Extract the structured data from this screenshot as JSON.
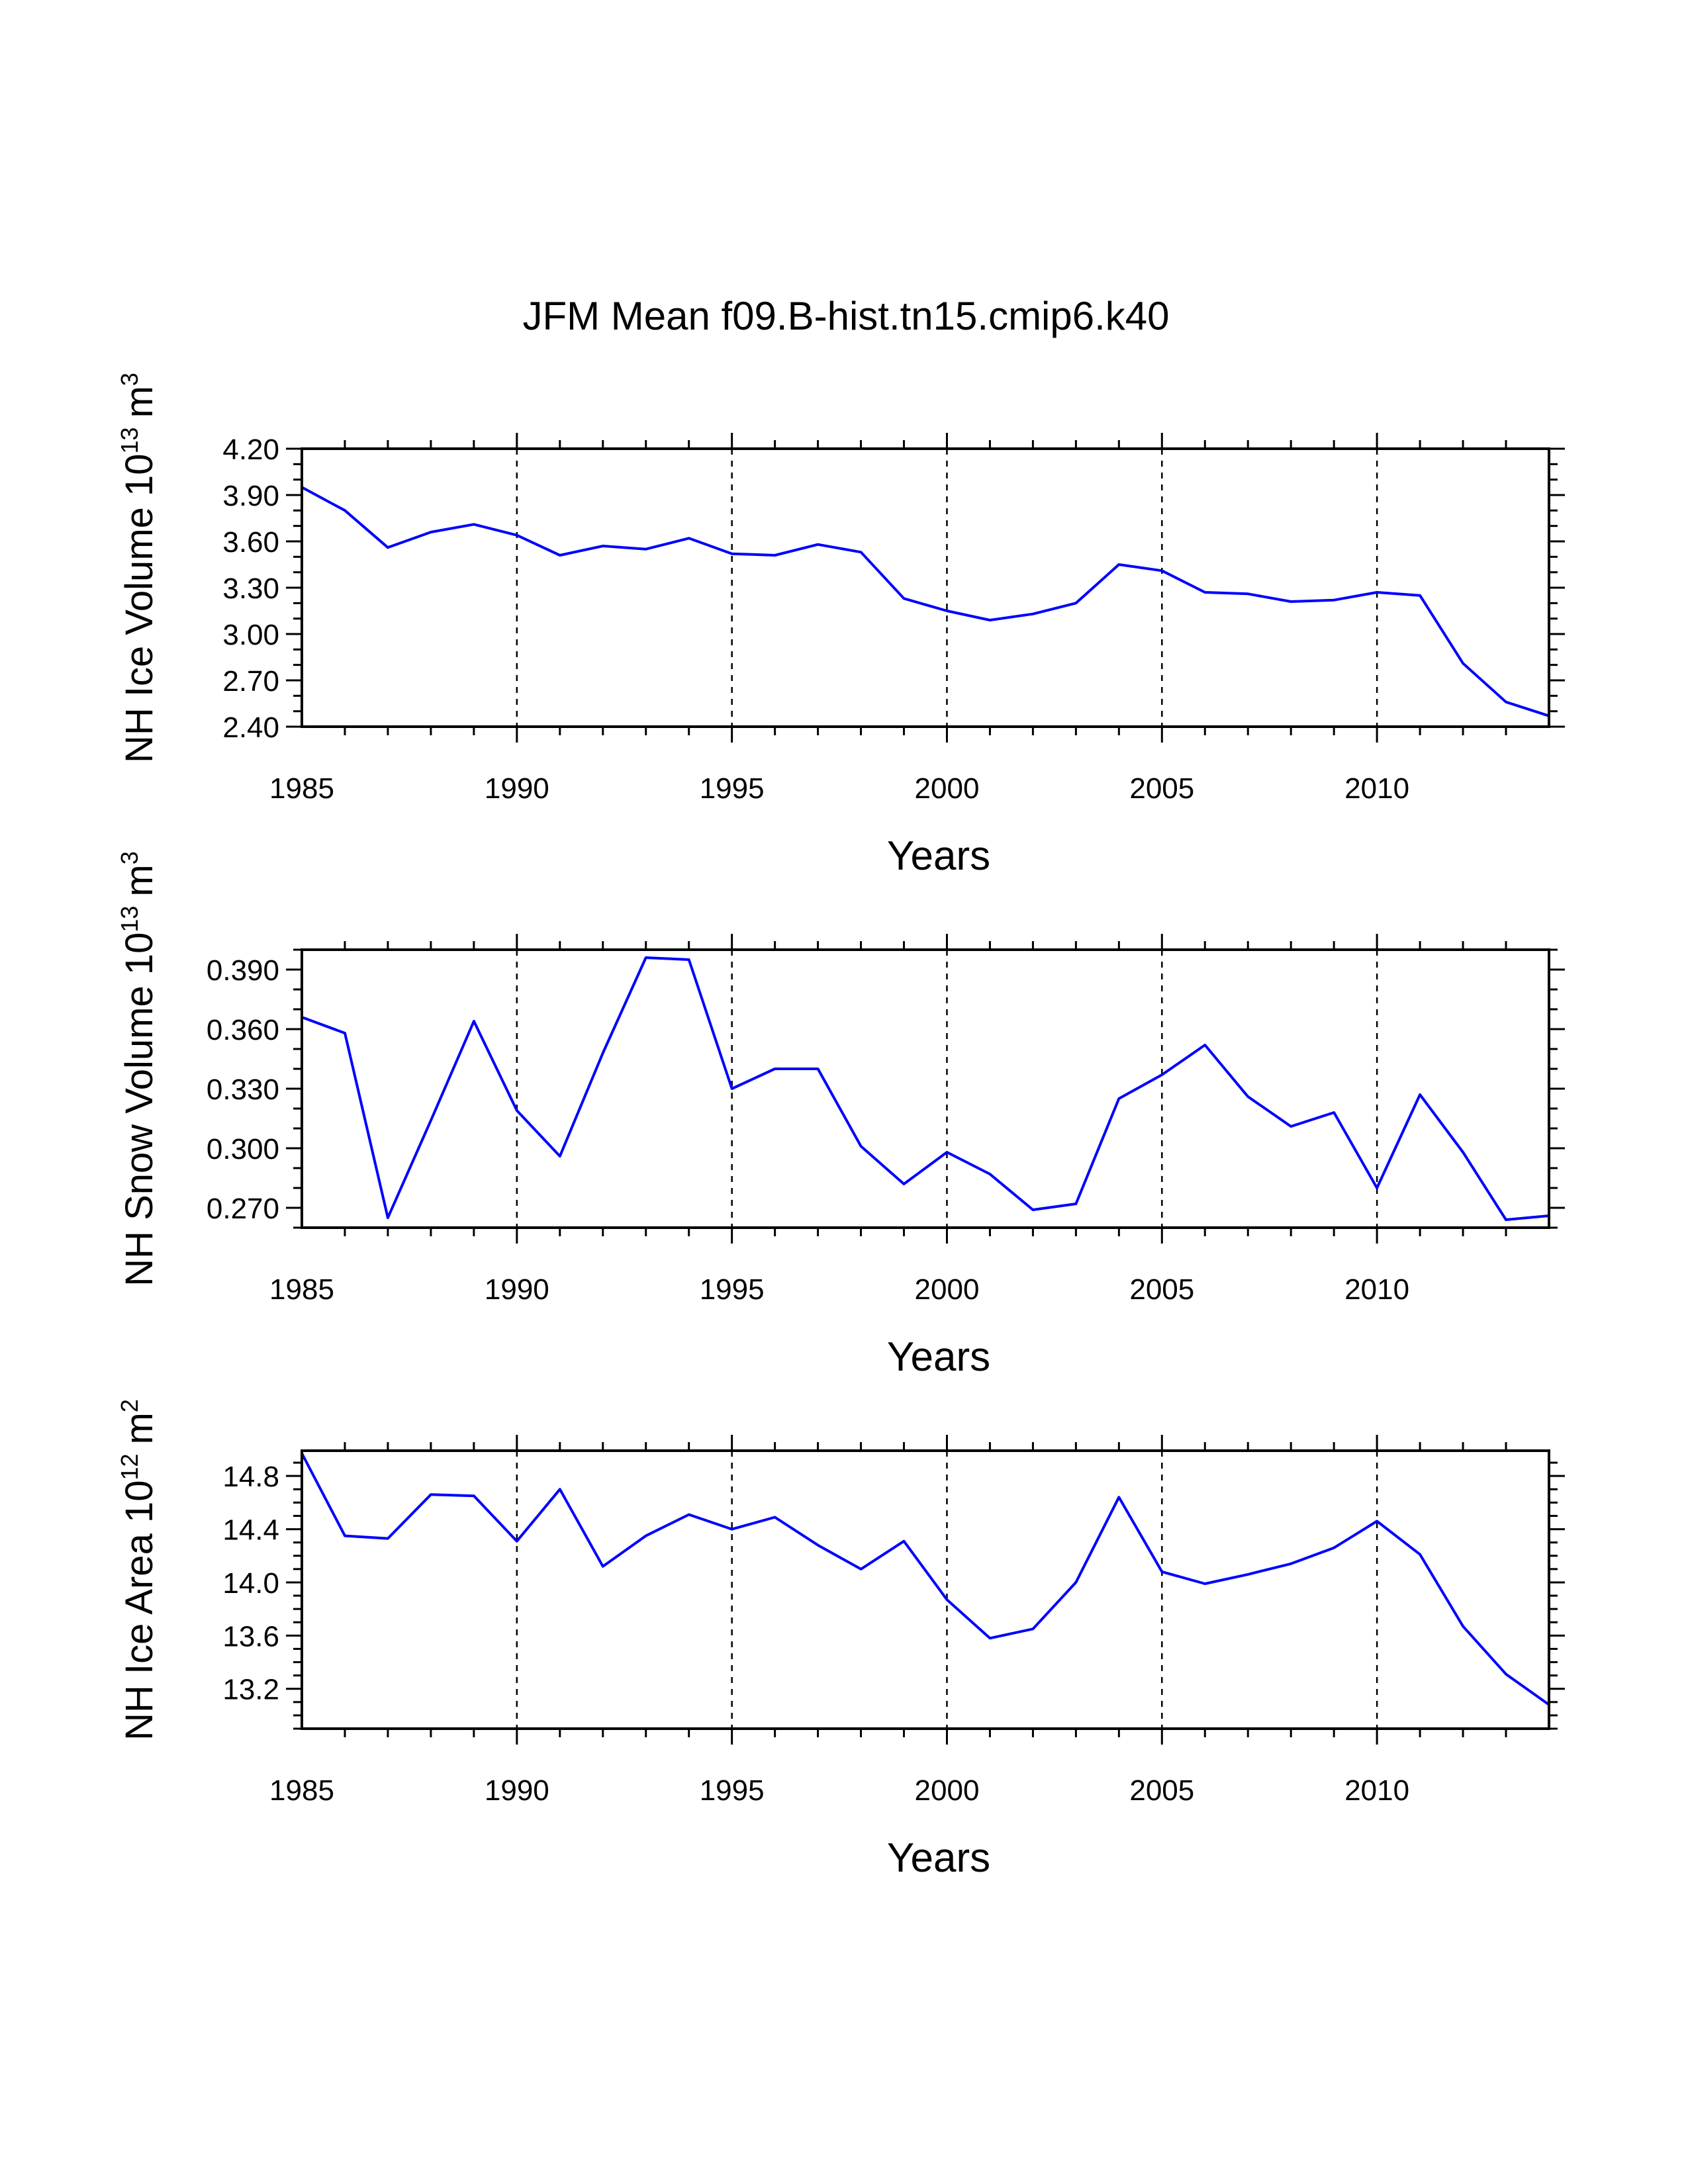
{
  "figure_title": "JFM Mean f09.B-hist.tn15.cmip6.k40",
  "colors": {
    "series": "#0000ff",
    "axes": "#000000"
  },
  "chart_data": [
    {
      "type": "line",
      "title": "JFM Mean f09.B-hist.tn15.cmip6.k40",
      "xlabel": "Years",
      "ylabel": "NH Ice Volume 10",
      "ylabel_exponent": "13",
      "ylabel_unit": "m",
      "ylabel_unit_exponent": "3",
      "xlim": [
        1985,
        2014
      ],
      "ylim": [
        2.4,
        4.2
      ],
      "x_ticks": [
        "1985",
        "1990",
        "1995",
        "2000",
        "2005",
        "2010"
      ],
      "y_ticks": [
        "2.40",
        "2.70",
        "3.00",
        "3.30",
        "3.60",
        "3.90",
        "4.20"
      ],
      "y_minor_step": 0.1,
      "grid_x": [
        1990,
        1995,
        2000,
        2005,
        2010
      ],
      "x": [
        1985,
        1986,
        1987,
        1988,
        1989,
        1990,
        1991,
        1992,
        1993,
        1994,
        1995,
        1996,
        1997,
        1998,
        1999,
        2000,
        2001,
        2002,
        2003,
        2004,
        2005,
        2006,
        2007,
        2008,
        2009,
        2010,
        2011,
        2012,
        2013,
        2014
      ],
      "series": [
        {
          "name": "NH Ice Volume",
          "values": [
            3.95,
            3.8,
            3.56,
            3.66,
            3.71,
            3.64,
            3.51,
            3.57,
            3.55,
            3.62,
            3.52,
            3.51,
            3.58,
            3.53,
            3.23,
            3.15,
            3.09,
            3.13,
            3.2,
            3.45,
            3.41,
            3.27,
            3.26,
            3.21,
            3.22,
            3.27,
            3.25,
            2.81,
            2.56,
            2.47
          ]
        }
      ]
    },
    {
      "type": "line",
      "title": "",
      "xlabel": "Years",
      "ylabel": "NH Snow Volume 10",
      "ylabel_exponent": "13",
      "ylabel_unit": "m",
      "ylabel_unit_exponent": "3",
      "xlim": [
        1985,
        2014
      ],
      "ylim": [
        0.26,
        0.4
      ],
      "x_ticks": [
        "1985",
        "1990",
        "1995",
        "2000",
        "2005",
        "2010"
      ],
      "y_ticks": [
        "0.270",
        "0.300",
        "0.330",
        "0.360",
        "0.390"
      ],
      "y_minor_step": 0.01,
      "grid_x": [
        1990,
        1995,
        2000,
        2005,
        2010
      ],
      "x": [
        1985,
        1986,
        1987,
        1988,
        1989,
        1990,
        1991,
        1992,
        1993,
        1994,
        1995,
        1996,
        1997,
        1998,
        1999,
        2000,
        2001,
        2002,
        2003,
        2004,
        2005,
        2006,
        2007,
        2008,
        2009,
        2010,
        2011,
        2012,
        2013,
        2014
      ],
      "series": [
        {
          "name": "NH Snow Volume",
          "values": [
            0.366,
            0.358,
            0.265,
            0.314,
            0.364,
            0.319,
            0.296,
            0.348,
            0.396,
            0.395,
            0.33,
            0.34,
            0.34,
            0.301,
            0.282,
            0.298,
            0.287,
            0.269,
            0.272,
            0.325,
            0.337,
            0.352,
            0.326,
            0.311,
            0.318,
            0.28,
            0.327,
            0.298,
            0.264,
            0.266
          ]
        }
      ]
    },
    {
      "type": "line",
      "title": "",
      "xlabel": "Years",
      "ylabel": "NH Ice Area 10",
      "ylabel_exponent": "12",
      "ylabel_unit": "m",
      "ylabel_unit_exponent": "2",
      "xlim": [
        1985,
        2014
      ],
      "ylim": [
        12.9,
        14.99
      ],
      "x_ticks": [
        "1985",
        "1990",
        "1995",
        "2000",
        "2005",
        "2010"
      ],
      "y_ticks": [
        "13.2",
        "13.6",
        "14.0",
        "14.4",
        "14.8"
      ],
      "y_minor_step": 0.1,
      "grid_x": [
        1990,
        1995,
        2000,
        2005,
        2010
      ],
      "x": [
        1985,
        1986,
        1987,
        1988,
        1989,
        1990,
        1991,
        1992,
        1993,
        1994,
        1995,
        1996,
        1997,
        1998,
        1999,
        2000,
        2001,
        2002,
        2003,
        2004,
        2005,
        2006,
        2007,
        2008,
        2009,
        2010,
        2011,
        2012,
        2013,
        2014
      ],
      "series": [
        {
          "name": "NH Ice Area",
          "values": [
            14.97,
            14.35,
            14.33,
            14.66,
            14.65,
            14.31,
            14.7,
            14.12,
            14.35,
            14.51,
            14.4,
            14.49,
            14.28,
            14.1,
            14.31,
            13.87,
            13.58,
            13.65,
            14.0,
            14.64,
            14.08,
            13.99,
            14.06,
            14.14,
            14.26,
            14.46,
            14.21,
            13.67,
            13.31,
            13.08
          ]
        }
      ]
    }
  ]
}
